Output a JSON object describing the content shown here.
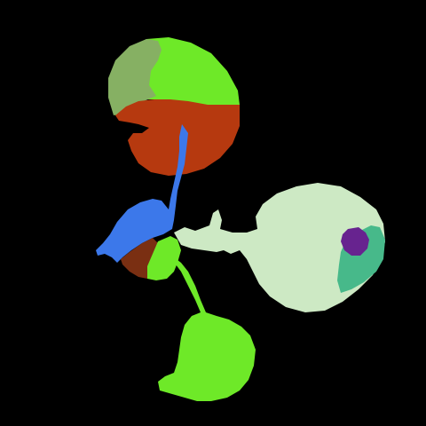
{
  "image": {
    "kind": "segmentation-mask",
    "background_color": "#000000"
  },
  "segments": [
    {
      "id": "top-leaf-olive",
      "color": "#86b063"
    },
    {
      "id": "top-leaf-green",
      "color": "#6ee928"
    },
    {
      "id": "top-leaf-rust",
      "color": "#b6390f"
    },
    {
      "id": "stem-blue",
      "color": "#3c78ea"
    },
    {
      "id": "center-brown",
      "color": "#7a2f12"
    },
    {
      "id": "center-green",
      "color": "#6ee928"
    },
    {
      "id": "right-leaf-pale",
      "color": "#cde9c4"
    },
    {
      "id": "right-leaf-teal",
      "color": "#47b98a"
    },
    {
      "id": "right-leaf-purple",
      "color": "#67238f"
    },
    {
      "id": "bottom-leaf-green",
      "color": "#6ee928"
    }
  ]
}
